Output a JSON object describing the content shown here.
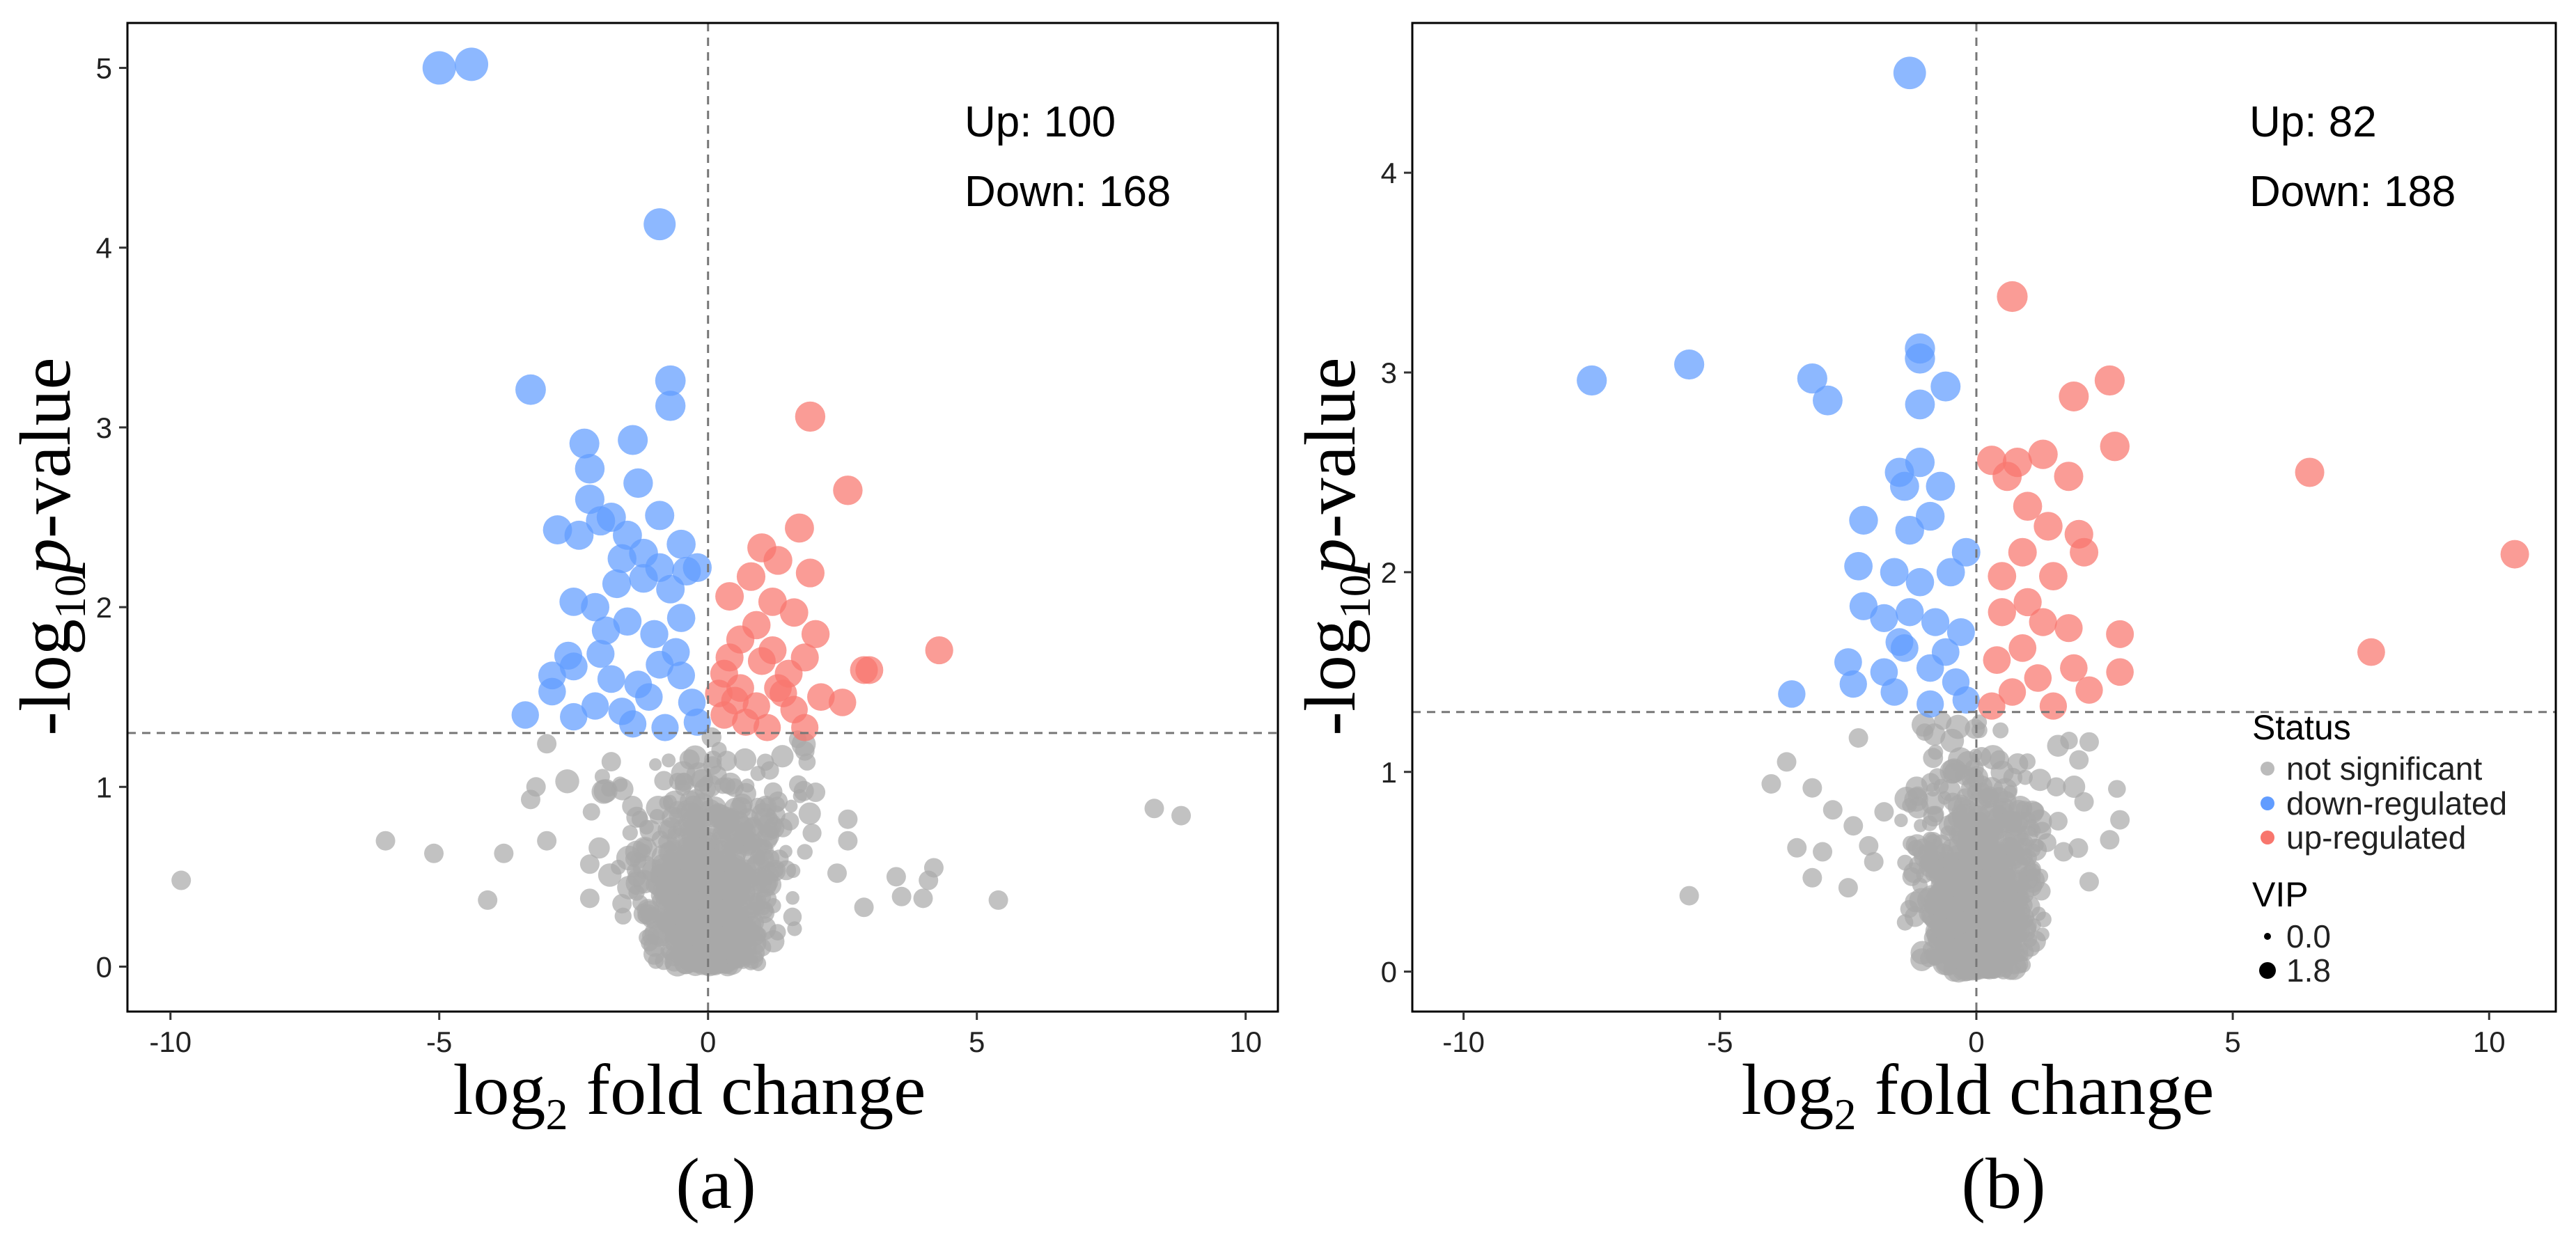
{
  "chart_data": [
    {
      "type": "scatter",
      "subtype": "volcano",
      "panel_label": "(a)",
      "xlabel": "log2 fold change",
      "ylabel": "-log10 p-value",
      "xlim": [
        -10.8,
        10.6
      ],
      "ylim": [
        -0.25,
        5.25
      ],
      "xticks": [
        -10,
        -5,
        0,
        5,
        10
      ],
      "yticks": [
        0,
        1,
        2,
        3,
        4,
        5
      ],
      "fc_threshold_x": 0,
      "p_threshold_y": 1.3,
      "counts": {
        "up_label": "Up: 100",
        "down_label": "Down: 168"
      },
      "series": [
        {
          "name": "down-regulated",
          "color": "#619CFF",
          "points": [
            [
              -5.0,
              5.0
            ],
            [
              -4.4,
              5.02
            ],
            [
              -0.9,
              4.13
            ],
            [
              -3.3,
              3.21
            ],
            [
              -0.7,
              3.26
            ],
            [
              -0.7,
              3.12
            ],
            [
              -2.3,
              2.91
            ],
            [
              -1.4,
              2.93
            ],
            [
              -2.2,
              2.77
            ],
            [
              -1.3,
              2.69
            ],
            [
              -2.2,
              2.6
            ],
            [
              -2.8,
              2.43
            ],
            [
              -2.0,
              2.48
            ],
            [
              -1.8,
              2.5
            ],
            [
              -1.5,
              2.4
            ],
            [
              -2.4,
              2.4
            ],
            [
              -1.2,
              2.3
            ],
            [
              -0.9,
              2.51
            ],
            [
              -0.5,
              2.35
            ],
            [
              -1.6,
              2.27
            ],
            [
              -2.5,
              2.03
            ],
            [
              -2.1,
              2.0
            ],
            [
              -1.7,
              2.13
            ],
            [
              -1.2,
              2.16
            ],
            [
              -0.7,
              2.1
            ],
            [
              -0.2,
              2.22
            ],
            [
              -0.4,
              2.2
            ],
            [
              -1.9,
              1.87
            ],
            [
              -2.6,
              1.73
            ],
            [
              -1.0,
              1.85
            ],
            [
              -0.6,
              1.75
            ],
            [
              -2.9,
              1.62
            ],
            [
              -2.5,
              1.67
            ],
            [
              -1.8,
              1.6
            ],
            [
              -1.3,
              1.57
            ],
            [
              -0.9,
              1.68
            ],
            [
              -3.4,
              1.4
            ],
            [
              -2.9,
              1.53
            ],
            [
              -2.1,
              1.45
            ],
            [
              -1.6,
              1.42
            ],
            [
              -1.1,
              1.5
            ],
            [
              -0.3,
              1.47
            ],
            [
              -0.2,
              1.36
            ],
            [
              -0.8,
              1.33
            ],
            [
              -1.4,
              1.35
            ],
            [
              -2.5,
              1.39
            ],
            [
              -0.5,
              1.62
            ],
            [
              -1.5,
              1.92
            ],
            [
              -0.5,
              1.94
            ],
            [
              -0.9,
              2.22
            ],
            [
              -2.0,
              1.74
            ]
          ]
        },
        {
          "name": "up-regulated",
          "color": "#F8766D",
          "points": [
            [
              1.9,
              3.06
            ],
            [
              2.6,
              2.65
            ],
            [
              1.7,
              2.44
            ],
            [
              1.0,
              2.33
            ],
            [
              1.3,
              2.26
            ],
            [
              0.8,
              2.17
            ],
            [
              1.9,
              2.19
            ],
            [
              0.4,
              2.06
            ],
            [
              1.2,
              2.03
            ],
            [
              1.6,
              1.97
            ],
            [
              0.9,
              1.9
            ],
            [
              2.0,
              1.85
            ],
            [
              0.6,
              1.82
            ],
            [
              1.2,
              1.76
            ],
            [
              1.8,
              1.72
            ],
            [
              1.0,
              1.7
            ],
            [
              0.3,
              1.63
            ],
            [
              0.6,
              1.55
            ],
            [
              1.4,
              1.52
            ],
            [
              2.9,
              1.65
            ],
            [
              3.0,
              1.65
            ],
            [
              4.3,
              1.76
            ],
            [
              2.5,
              1.47
            ],
            [
              1.6,
              1.43
            ],
            [
              0.3,
              1.4
            ],
            [
              0.7,
              1.36
            ],
            [
              1.1,
              1.33
            ],
            [
              1.8,
              1.33
            ],
            [
              0.5,
              1.48
            ],
            [
              1.5,
              1.63
            ],
            [
              0.9,
              1.45
            ],
            [
              0.2,
              1.52
            ],
            [
              2.1,
              1.5
            ],
            [
              0.4,
              1.72
            ],
            [
              1.3,
              1.55
            ]
          ]
        },
        {
          "name": "not significant",
          "color": "#AAAAAA",
          "points": [
            [
              -9.8,
              0.48
            ],
            [
              -6.0,
              0.7
            ],
            [
              -5.1,
              0.63
            ],
            [
              -4.1,
              0.37
            ],
            [
              -3.8,
              0.63
            ],
            [
              -3.3,
              0.93
            ],
            [
              -3.2,
              1.0
            ],
            [
              -3.0,
              1.24
            ],
            [
              -3.0,
              0.7
            ],
            [
              -2.2,
              0.57
            ],
            [
              -2.2,
              0.38
            ],
            [
              -1.8,
              1.14
            ],
            [
              -1.6,
              0.35
            ],
            [
              1.3,
              0.92
            ],
            [
              1.8,
              1.2
            ],
            [
              2.0,
              0.97
            ],
            [
              2.6,
              0.82
            ],
            [
              2.6,
              0.7
            ],
            [
              2.4,
              0.52
            ],
            [
              3.5,
              0.5
            ],
            [
              3.6,
              0.39
            ],
            [
              4.0,
              0.38
            ],
            [
              4.1,
              0.48
            ],
            [
              4.2,
              0.55
            ],
            [
              5.4,
              0.37
            ],
            [
              8.3,
              0.88
            ],
            [
              8.8,
              0.84
            ],
            [
              2.9,
              0.33
            ]
          ]
        }
      ]
    },
    {
      "type": "scatter",
      "subtype": "volcano",
      "panel_label": "(b)",
      "xlabel": "log2 fold change",
      "ylabel": "-log10 p-value",
      "xlim": [
        -11.0,
        11.3
      ],
      "ylim": [
        -0.2,
        4.75
      ],
      "xticks": [
        -10,
        -5,
        0,
        5,
        10
      ],
      "yticks": [
        0,
        1,
        2,
        3,
        4
      ],
      "fc_threshold_x": 0,
      "p_threshold_y": 1.3,
      "counts": {
        "up_label": "Up: 82",
        "down_label": "Down: 188"
      },
      "legend": {
        "status_title": "Status",
        "status_items": [
          {
            "label": "not significant",
            "color": "#BBBBBB"
          },
          {
            "label": "down-regulated",
            "color": "#619CFF"
          },
          {
            "label": "up-regulated",
            "color": "#F8766D"
          }
        ],
        "vip_title": "VIP",
        "vip_items": [
          {
            "label": "0.0"
          },
          {
            "label": "1.8"
          }
        ]
      },
      "series": [
        {
          "name": "down-regulated",
          "color": "#619CFF",
          "points": [
            [
              -1.3,
              4.5
            ],
            [
              -7.5,
              2.96
            ],
            [
              -5.6,
              3.04
            ],
            [
              -3.2,
              2.97
            ],
            [
              -2.9,
              2.86
            ],
            [
              -1.1,
              3.12
            ],
            [
              -1.1,
              3.07
            ],
            [
              -0.6,
              2.93
            ],
            [
              -1.1,
              2.84
            ],
            [
              -1.5,
              2.5
            ],
            [
              -1.1,
              2.55
            ],
            [
              -2.2,
              2.26
            ],
            [
              -1.4,
              2.43
            ],
            [
              -0.7,
              2.43
            ],
            [
              -0.9,
              2.28
            ],
            [
              -1.3,
              2.21
            ],
            [
              -2.3,
              2.03
            ],
            [
              -1.6,
              2.0
            ],
            [
              -1.1,
              1.95
            ],
            [
              -0.5,
              2.0
            ],
            [
              -0.2,
              2.1
            ],
            [
              -2.2,
              1.83
            ],
            [
              -1.8,
              1.77
            ],
            [
              -1.3,
              1.8
            ],
            [
              -0.8,
              1.75
            ],
            [
              -0.3,
              1.7
            ],
            [
              -2.5,
              1.55
            ],
            [
              -1.8,
              1.5
            ],
            [
              -1.4,
              1.62
            ],
            [
              -0.9,
              1.52
            ],
            [
              -0.4,
              1.45
            ],
            [
              -3.6,
              1.39
            ],
            [
              -2.4,
              1.44
            ],
            [
              -1.6,
              1.4
            ],
            [
              -0.9,
              1.34
            ],
            [
              -0.2,
              1.36
            ],
            [
              -1.5,
              1.65
            ],
            [
              -0.6,
              1.6
            ]
          ]
        },
        {
          "name": "up-regulated",
          "color": "#F8766D",
          "points": [
            [
              0.7,
              3.38
            ],
            [
              1.9,
              2.88
            ],
            [
              2.6,
              2.96
            ],
            [
              2.7,
              2.63
            ],
            [
              6.5,
              2.5
            ],
            [
              10.5,
              2.09
            ],
            [
              7.7,
              1.6
            ],
            [
              1.3,
              2.59
            ],
            [
              0.6,
              2.48
            ],
            [
              1.8,
              2.48
            ],
            [
              1.0,
              2.33
            ],
            [
              1.4,
              2.23
            ],
            [
              2.0,
              2.19
            ],
            [
              2.1,
              2.1
            ],
            [
              0.9,
              2.1
            ],
            [
              0.5,
              1.98
            ],
            [
              1.5,
              1.98
            ],
            [
              1.0,
              1.85
            ],
            [
              0.5,
              1.8
            ],
            [
              1.3,
              1.75
            ],
            [
              1.8,
              1.72
            ],
            [
              2.8,
              1.69
            ],
            [
              0.9,
              1.62
            ],
            [
              0.4,
              1.56
            ],
            [
              1.9,
              1.52
            ],
            [
              2.8,
              1.5
            ],
            [
              1.2,
              1.47
            ],
            [
              0.7,
              1.4
            ],
            [
              2.2,
              1.41
            ],
            [
              0.3,
              1.33
            ],
            [
              1.5,
              1.33
            ],
            [
              0.8,
              2.55
            ],
            [
              0.3,
              2.56
            ]
          ]
        },
        {
          "name": "not significant",
          "color": "#AAAAAA",
          "points": [
            [
              -4.0,
              0.94
            ],
            [
              -3.7,
              1.05
            ],
            [
              -3.5,
              0.62
            ],
            [
              -3.2,
              0.47
            ],
            [
              -3.0,
              0.6
            ],
            [
              -5.6,
              0.38
            ],
            [
              -2.8,
              0.81
            ],
            [
              -2.5,
              0.42
            ],
            [
              -2.4,
              0.73
            ],
            [
              -2.1,
              0.63
            ],
            [
              -2.0,
              0.55
            ],
            [
              -1.8,
              0.8
            ],
            [
              2.0,
              1.06
            ],
            [
              2.1,
              0.85
            ],
            [
              1.7,
              0.6
            ],
            [
              2.2,
              0.45
            ],
            [
              2.8,
              0.76
            ],
            [
              2.6,
              0.66
            ],
            [
              2.2,
              1.15
            ],
            [
              -2.3,
              1.17
            ],
            [
              -3.2,
              0.92
            ]
          ]
        }
      ]
    }
  ]
}
